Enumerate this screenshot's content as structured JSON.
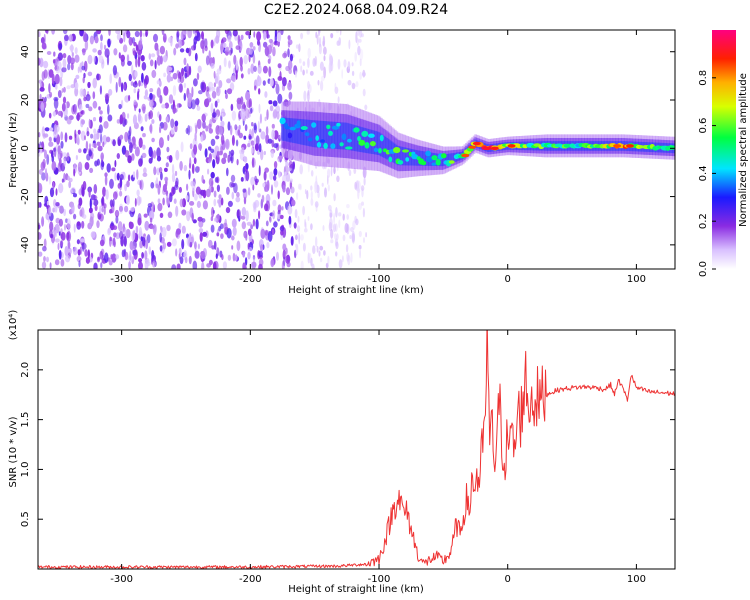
{
  "title": "C2E2.2024.068.04.09.R24",
  "colors": {
    "snr_line": "#ee3333",
    "axis": "#000000",
    "background": "#ffffff"
  },
  "chart_data": [
    {
      "type": "heatmap",
      "xlabel": "Height of straight line (km)",
      "ylabel": "Frequency (Hz)",
      "xlim": [
        -365,
        130
      ],
      "ylim": [
        -50,
        49
      ],
      "xticks": [
        -300,
        -200,
        -100,
        0,
        100
      ],
      "yticks": [
        -40,
        -20,
        0,
        20,
        40
      ],
      "colorbar": {
        "label": "Normalized spectral amplitude",
        "range": [
          0,
          1
        ],
        "ticks": [
          "0.0",
          "0.2",
          "0.4",
          "0.6",
          "0.8"
        ],
        "colormap": "rainbow (white-lavender-violet-blue-cyan-green-yellow-red-magenta)"
      },
      "regions": [
        {
          "x_range": [
            -365,
            -165
          ],
          "freq_range": [
            -50,
            49
          ],
          "amplitude": 0.15,
          "texture": "dense noise speckle"
        },
        {
          "x_range": [
            -165,
            -110
          ],
          "freq_range": [
            -50,
            49
          ],
          "amplitude": 0.08,
          "texture": "sparse noise streaks"
        }
      ],
      "signal_trace": [
        {
          "x": -175,
          "f": 8,
          "half_width_hz": 6,
          "amplitude": 0.35
        },
        {
          "x": -150,
          "f": 6,
          "half_width_hz": 7,
          "amplitude": 0.4
        },
        {
          "x": -125,
          "f": 5,
          "half_width_hz": 7,
          "amplitude": 0.45
        },
        {
          "x": -100,
          "f": 2,
          "half_width_hz": 6,
          "amplitude": 0.5
        },
        {
          "x": -85,
          "f": -3,
          "half_width_hz": 5,
          "amplitude": 0.5
        },
        {
          "x": -70,
          "f": -4,
          "half_width_hz": 4,
          "amplitude": 0.45
        },
        {
          "x": -50,
          "f": -5,
          "half_width_hz": 3,
          "amplitude": 0.45
        },
        {
          "x": -35,
          "f": -3,
          "half_width_hz": 2,
          "amplitude": 0.6
        },
        {
          "x": -25,
          "f": 2,
          "half_width_hz": 2,
          "amplitude": 0.8
        },
        {
          "x": -15,
          "f": 0,
          "half_width_hz": 2,
          "amplitude": 0.85
        },
        {
          "x": 0,
          "f": 1,
          "half_width_hz": 2,
          "amplitude": 0.7
        },
        {
          "x": 30,
          "f": 1,
          "half_width_hz": 2.5,
          "amplitude": 0.5
        },
        {
          "x": 60,
          "f": 1,
          "half_width_hz": 2.5,
          "amplitude": 0.5
        },
        {
          "x": 90,
          "f": 1,
          "half_width_hz": 2.5,
          "amplitude": 0.75
        },
        {
          "x": 130,
          "f": 0,
          "half_width_hz": 2.5,
          "amplitude": 0.45
        }
      ]
    },
    {
      "type": "line",
      "xlabel": "Height of straight line (km)",
      "ylabel": "SNR (10 * v/v)",
      "scale_label": "(x10⁴)",
      "xlim": [
        -365,
        130
      ],
      "ylim": [
        0,
        2.4
      ],
      "xticks": [
        -300,
        -200,
        -100,
        0,
        100
      ],
      "yticks": [
        "0.5",
        "1.0",
        "1.5",
        "2.0"
      ],
      "series": [
        {
          "x": [
            -365,
            -300,
            -200,
            -130,
            -110,
            -100,
            -95,
            -90,
            -85,
            -82,
            -78,
            -75,
            -70,
            -65,
            -60,
            -55,
            -50,
            -45,
            -42,
            -40,
            -37,
            -35,
            -32,
            -30,
            -28,
            -26,
            -24,
            -22,
            -20,
            -18,
            -16,
            -14,
            -12,
            -10,
            -8,
            -6,
            -4,
            -2,
            0,
            2,
            4,
            6,
            8,
            10,
            12,
            14,
            16,
            20,
            25,
            30,
            35,
            40,
            50,
            60,
            70,
            75,
            80,
            83,
            86,
            90,
            93,
            96,
            100,
            105,
            110,
            120,
            130
          ],
          "y": [
            0.02,
            0.02,
            0.02,
            0.03,
            0.05,
            0.1,
            0.3,
            0.55,
            0.75,
            0.6,
            0.55,
            0.4,
            0.15,
            0.05,
            0.1,
            0.12,
            0.08,
            0.15,
            0.3,
            0.45,
            0.35,
            0.5,
            0.7,
            0.55,
            0.9,
            0.8,
            0.95,
            0.85,
            1.2,
            1.3,
            2.35,
            1.25,
            1.4,
            1.05,
            1.45,
            1.6,
            1.2,
            1.1,
            1.35,
            1.25,
            1.3,
            1.2,
            1.6,
            1.5,
            1.75,
            1.9,
            1.65,
            1.72,
            1.7,
            1.75,
            1.78,
            1.8,
            1.82,
            1.83,
            1.82,
            1.8,
            1.85,
            1.75,
            1.9,
            1.8,
            1.7,
            1.95,
            1.82,
            1.8,
            1.78,
            1.77,
            1.76
          ]
        }
      ]
    }
  ]
}
